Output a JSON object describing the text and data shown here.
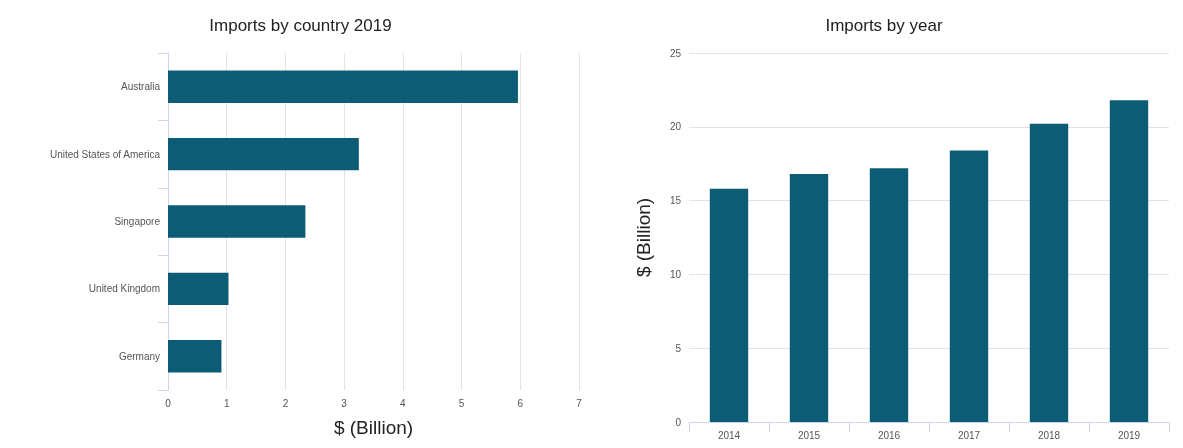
{
  "chart_data": [
    {
      "type": "bar",
      "title": "Imports by country 2019",
      "orientation": "horizontal",
      "categories": [
        "Australia",
        "United States of America",
        "Singapore",
        "United Kingdom",
        "Germany"
      ],
      "values": [
        5.96,
        3.25,
        2.34,
        1.03,
        0.91
      ],
      "color": "#0b5c74",
      "xlabel": "$ (Billion)",
      "xlim": [
        0,
        7
      ],
      "xticks": [
        0,
        1,
        2,
        3,
        4,
        5,
        6,
        7
      ],
      "grid": "x"
    },
    {
      "type": "bar",
      "title": "Imports by year",
      "categories": [
        "2014",
        "2015",
        "2016",
        "2017",
        "2018",
        "2019"
      ],
      "values": [
        15.8,
        16.8,
        17.2,
        18.4,
        20.2,
        21.8
      ],
      "color": "#0b5c74",
      "ylabel": "$ (Billion)",
      "ylim": [
        0,
        25
      ],
      "yticks": [
        0,
        5,
        10,
        15,
        20,
        25
      ],
      "grid": "y"
    }
  ]
}
